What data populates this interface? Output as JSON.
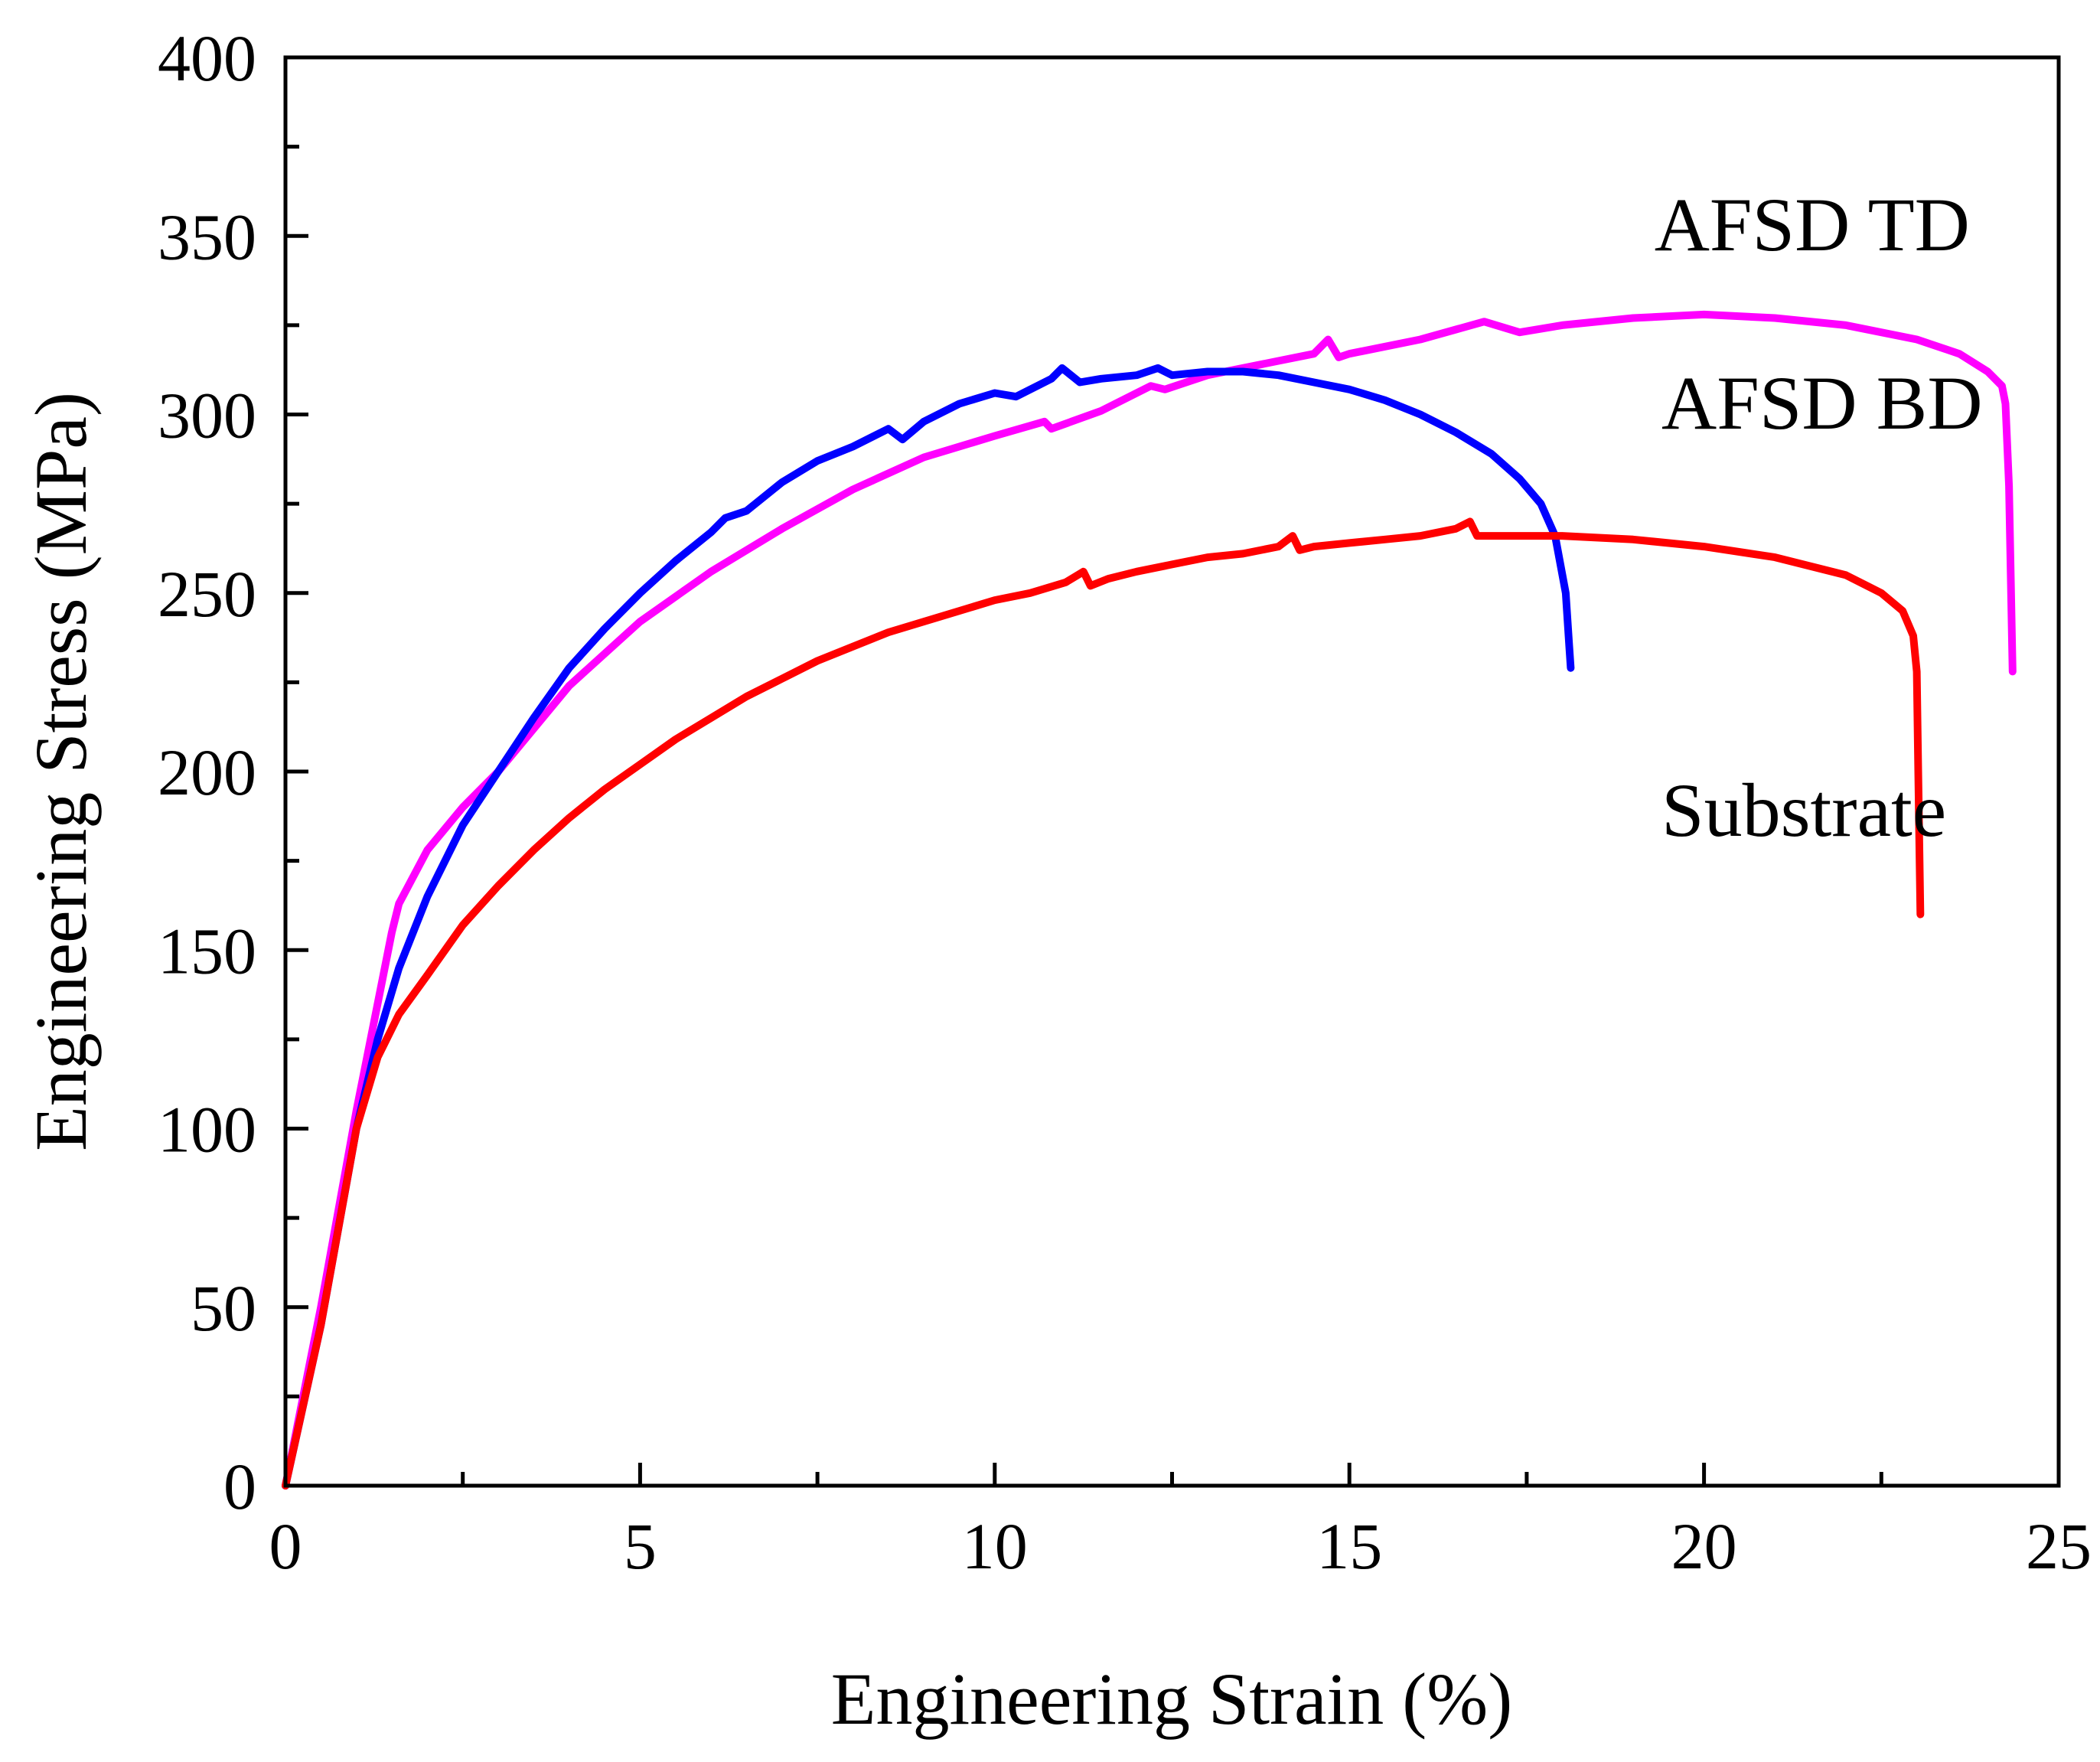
{
  "chart_data": {
    "type": "line",
    "title": "",
    "xlabel": "Engineering Strain (%)",
    "ylabel": "Engineering Stress (MPa)",
    "xlim": [
      0,
      25
    ],
    "ylim": [
      0,
      400
    ],
    "xticks": [
      0,
      5,
      10,
      15,
      20,
      25
    ],
    "xtick_labels": [
      "0",
      "5",
      "10",
      "15",
      "20",
      "25"
    ],
    "yticks": [
      0,
      50,
      100,
      150,
      200,
      250,
      300,
      350,
      400
    ],
    "ytick_labels": [
      "0",
      "50",
      "100",
      "150",
      "200",
      "250",
      "300",
      "350",
      "400"
    ],
    "grid": false,
    "series": [
      {
        "name": "AFSD TD",
        "color": "#ff00ff",
        "label_pos": [
          19.3,
          346
        ],
        "x": [
          0,
          0.5,
          1.0,
          1.5,
          1.6,
          2.0,
          2.5,
          3.0,
          4.0,
          5.0,
          6.0,
          7.0,
          8.0,
          9.0,
          10.0,
          10.7,
          10.8,
          11.5,
          12.2,
          12.4,
          13.0,
          14.0,
          14.5,
          14.7,
          14.85,
          15.0,
          16.0,
          16.9,
          17.4,
          18.0,
          19.0,
          20.0,
          21.0,
          22.0,
          23.0,
          23.6,
          24.0,
          24.2,
          24.25,
          24.3,
          24.35
        ],
        "y": [
          0,
          50,
          105,
          155,
          163,
          178,
          190,
          200,
          224,
          242,
          256,
          268,
          279,
          288,
          294,
          298,
          296,
          301,
          308,
          307,
          311,
          315,
          317,
          321,
          316,
          317,
          321,
          326,
          323,
          325,
          327,
          328,
          327,
          325,
          321,
          317,
          312,
          308,
          303,
          280,
          228
        ]
      },
      {
        "name": "AFSD BD",
        "color": "#0000ff",
        "label_pos": [
          19.4,
          296
        ],
        "x": [
          0,
          0.5,
          1.0,
          1.3,
          1.6,
          2.0,
          2.5,
          3.0,
          3.5,
          4.0,
          4.5,
          5.0,
          5.5,
          6.0,
          6.2,
          6.5,
          7.0,
          7.5,
          8.0,
          8.5,
          8.7,
          9.0,
          9.5,
          10.0,
          10.3,
          10.8,
          10.95,
          11.2,
          11.5,
          12.0,
          12.3,
          12.5,
          13.0,
          13.5,
          14.0,
          14.5,
          15.0,
          15.5,
          16.0,
          16.5,
          17.0,
          17.4,
          17.7,
          17.9,
          18.05,
          18.1,
          18.12
        ],
        "y": [
          0,
          45,
          100,
          125,
          145,
          165,
          185,
          200,
          215,
          229,
          240,
          250,
          259,
          267,
          271,
          273,
          281,
          287,
          291,
          296,
          293,
          298,
          303,
          306,
          305,
          310,
          313,
          309,
          310,
          311,
          313,
          311,
          312,
          312,
          311,
          309,
          307,
          304,
          300,
          295,
          289,
          282,
          275,
          266,
          250,
          235,
          229
        ]
      },
      {
        "name": "Substrate",
        "color": "#ff0000",
        "label_pos": [
          19.4,
          182
        ],
        "x": [
          0,
          0.5,
          1.0,
          1.3,
          1.6,
          2.0,
          2.5,
          3.0,
          3.5,
          4.0,
          4.5,
          5.0,
          5.5,
          6.0,
          6.5,
          7.0,
          7.5,
          8.0,
          8.5,
          9.0,
          9.5,
          10.0,
          10.5,
          11.0,
          11.25,
          11.35,
          11.6,
          12.0,
          12.5,
          13.0,
          13.5,
          14.0,
          14.2,
          14.3,
          14.5,
          15.0,
          15.5,
          16.0,
          16.5,
          16.7,
          16.8,
          17.0,
          18.0,
          19.0,
          20.0,
          21.0,
          22.0,
          22.5,
          22.8,
          22.95,
          23.0,
          23.02,
          23.05
        ],
        "y": [
          0,
          45,
          100,
          120,
          132,
          143,
          157,
          168,
          178,
          187,
          195,
          202,
          209,
          215,
          221,
          226,
          231,
          235,
          239,
          242,
          245,
          248,
          250,
          253,
          256,
          252,
          254,
          256,
          258,
          260,
          261,
          263,
          266,
          262,
          263,
          264,
          265,
          266,
          268,
          270,
          266,
          266,
          266,
          265,
          263,
          260,
          255,
          250,
          245,
          238,
          228,
          200,
          160
        ]
      }
    ]
  }
}
